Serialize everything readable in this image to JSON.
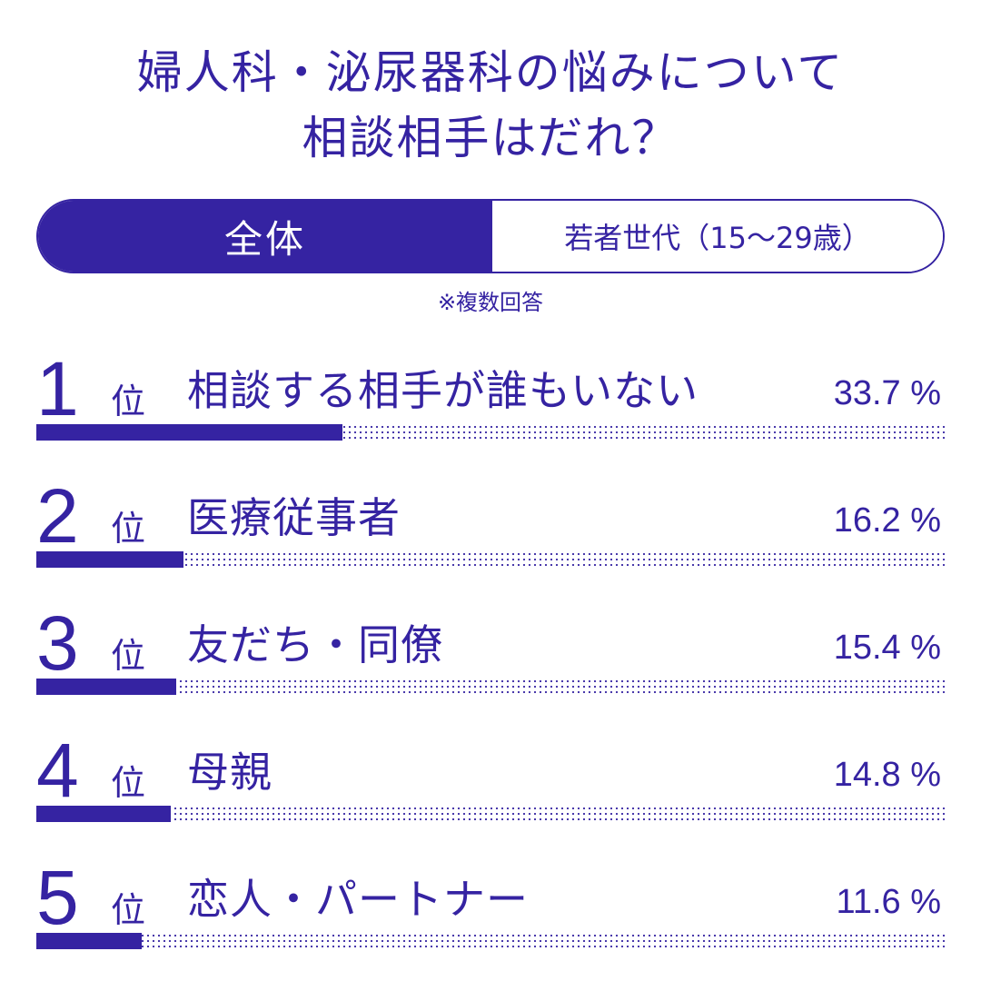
{
  "title": {
    "line1": "婦人科・泌尿器科の悩みについて",
    "line2": "相談相手はだれ？"
  },
  "tabs": {
    "active": "全体",
    "inactive": "若者世代（15～29歳）"
  },
  "note": "※複数回答",
  "colors": {
    "accent": "#3523a2",
    "background": "#ffffff"
  },
  "rank_unit": "位",
  "chart_data": {
    "type": "bar",
    "orientation": "horizontal",
    "title": "",
    "categories": [
      "相談する相手が誰もいない",
      "医療従事者",
      "友だち・同僚",
      "母親",
      "恋人・パートナー"
    ],
    "ranks": [
      "1",
      "2",
      "3",
      "4",
      "5"
    ],
    "values": [
      33.7,
      16.2,
      15.4,
      14.8,
      11.6
    ],
    "value_labels": [
      "33.7 %",
      "16.2 %",
      "15.4 %",
      "14.8 %",
      "11.6 %"
    ],
    "xlim": [
      0,
      100
    ],
    "unit": "%"
  }
}
